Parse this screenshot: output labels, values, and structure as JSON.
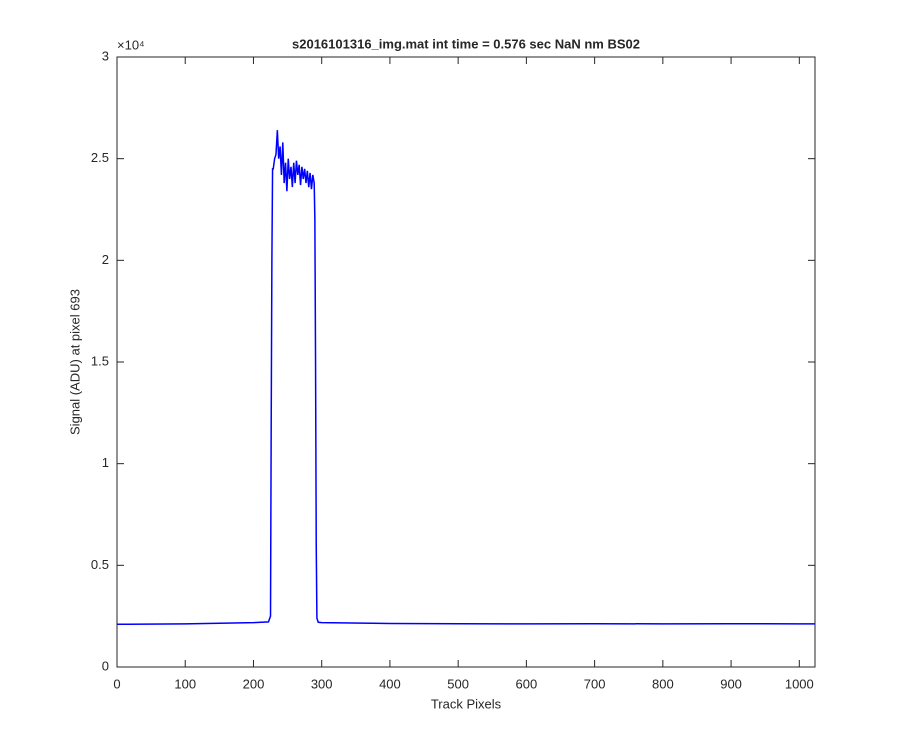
{
  "chart_data": {
    "type": "line",
    "title": "s2016101316_img.mat int time = 0.576 sec  NaN nm BS02",
    "x_label": "Track Pixels",
    "y_label": "Signal (ADU) at pixel 693",
    "y_scale_label": "×10⁴",
    "xlim": [
      0,
      1023
    ],
    "ylim": [
      0,
      3
    ],
    "xticks": [
      0,
      100,
      200,
      300,
      400,
      500,
      600,
      700,
      800,
      900,
      1000
    ],
    "yticks": [
      0,
      0.5,
      1,
      1.5,
      2,
      2.5,
      3
    ],
    "grid": false,
    "series": [
      {
        "name": "Signal",
        "color": "#0000ff",
        "x": [
          0,
          100,
          200,
          222,
          225,
          226,
          227,
          228,
          229,
          231,
          233,
          235,
          237,
          239,
          241,
          243,
          245,
          247,
          249,
          251,
          253,
          255,
          257,
          259,
          261,
          263,
          265,
          267,
          269,
          271,
          273,
          275,
          277,
          279,
          281,
          283,
          285,
          287,
          289,
          290,
          291,
          292,
          293,
          295,
          300,
          400,
          500,
          600,
          700,
          800,
          900,
          1000,
          1023
        ],
        "values": [
          0.21,
          0.212,
          0.218,
          0.222,
          0.25,
          1.2,
          2.0,
          2.45,
          2.45,
          2.5,
          2.52,
          2.64,
          2.5,
          2.56,
          2.42,
          2.58,
          2.38,
          2.48,
          2.34,
          2.5,
          2.4,
          2.46,
          2.36,
          2.48,
          2.38,
          2.49,
          2.42,
          2.47,
          2.37,
          2.46,
          2.4,
          2.45,
          2.38,
          2.44,
          2.36,
          2.43,
          2.35,
          2.42,
          2.38,
          2.2,
          1.5,
          0.6,
          0.24,
          0.22,
          0.218,
          0.214,
          0.213,
          0.212,
          0.213,
          0.212,
          0.213,
          0.212,
          0.212
        ]
      }
    ]
  }
}
